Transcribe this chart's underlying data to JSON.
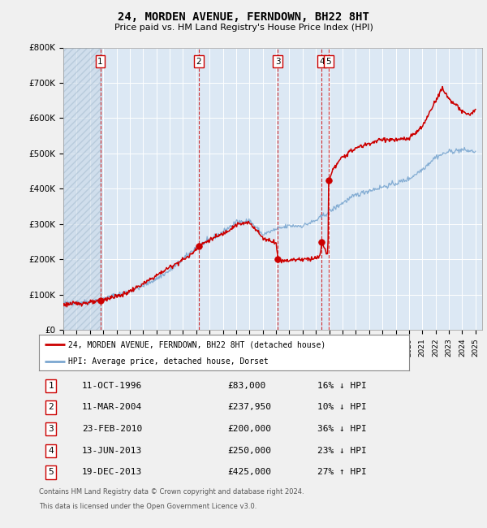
{
  "title": "24, MORDEN AVENUE, FERNDOWN, BH22 8HT",
  "subtitle": "Price paid vs. HM Land Registry's House Price Index (HPI)",
  "legend_house": "24, MORDEN AVENUE, FERNDOWN, BH22 8HT (detached house)",
  "legend_hpi": "HPI: Average price, detached house, Dorset",
  "footer1": "Contains HM Land Registry data © Crown copyright and database right 2024.",
  "footer2": "This data is licensed under the Open Government Licence v3.0.",
  "house_color": "#cc0000",
  "hpi_color": "#7ba7d0",
  "fig_bg": "#f0f0f0",
  "plot_bg": "#dce8f4",
  "grid_color": "#ffffff",
  "sale_dates_x": [
    1996.78,
    2004.19,
    2010.14,
    2013.44,
    2013.96
  ],
  "sale_prices_y": [
    83000,
    237950,
    200000,
    250000,
    425000
  ],
  "sale_labels": [
    "1",
    "2",
    "3",
    "4",
    "5"
  ],
  "sale_info": [
    {
      "num": "1",
      "date": "11-OCT-1996",
      "price": "£83,000",
      "pct": "16%",
      "dir": "↓",
      "label": "HPI"
    },
    {
      "num": "2",
      "date": "11-MAR-2004",
      "price": "£237,950",
      "pct": "10%",
      "dir": "↓",
      "label": "HPI"
    },
    {
      "num": "3",
      "date": "23-FEB-2010",
      "price": "£200,000",
      "pct": "36%",
      "dir": "↓",
      "label": "HPI"
    },
    {
      "num": "4",
      "date": "13-JUN-2013",
      "price": "£250,000",
      "pct": "23%",
      "dir": "↓",
      "label": "HPI"
    },
    {
      "num": "5",
      "date": "19-DEC-2013",
      "price": "£425,000",
      "pct": "27%",
      "dir": "↑",
      "label": "HPI"
    }
  ],
  "ylim": [
    0,
    800000
  ],
  "yticks": [
    0,
    100000,
    200000,
    300000,
    400000,
    500000,
    600000,
    700000,
    800000
  ],
  "ytick_labels": [
    "£0",
    "£100K",
    "£200K",
    "£300K",
    "£400K",
    "£500K",
    "£600K",
    "£700K",
    "£800K"
  ],
  "hatch_edgecolor": "#a0b8cc"
}
